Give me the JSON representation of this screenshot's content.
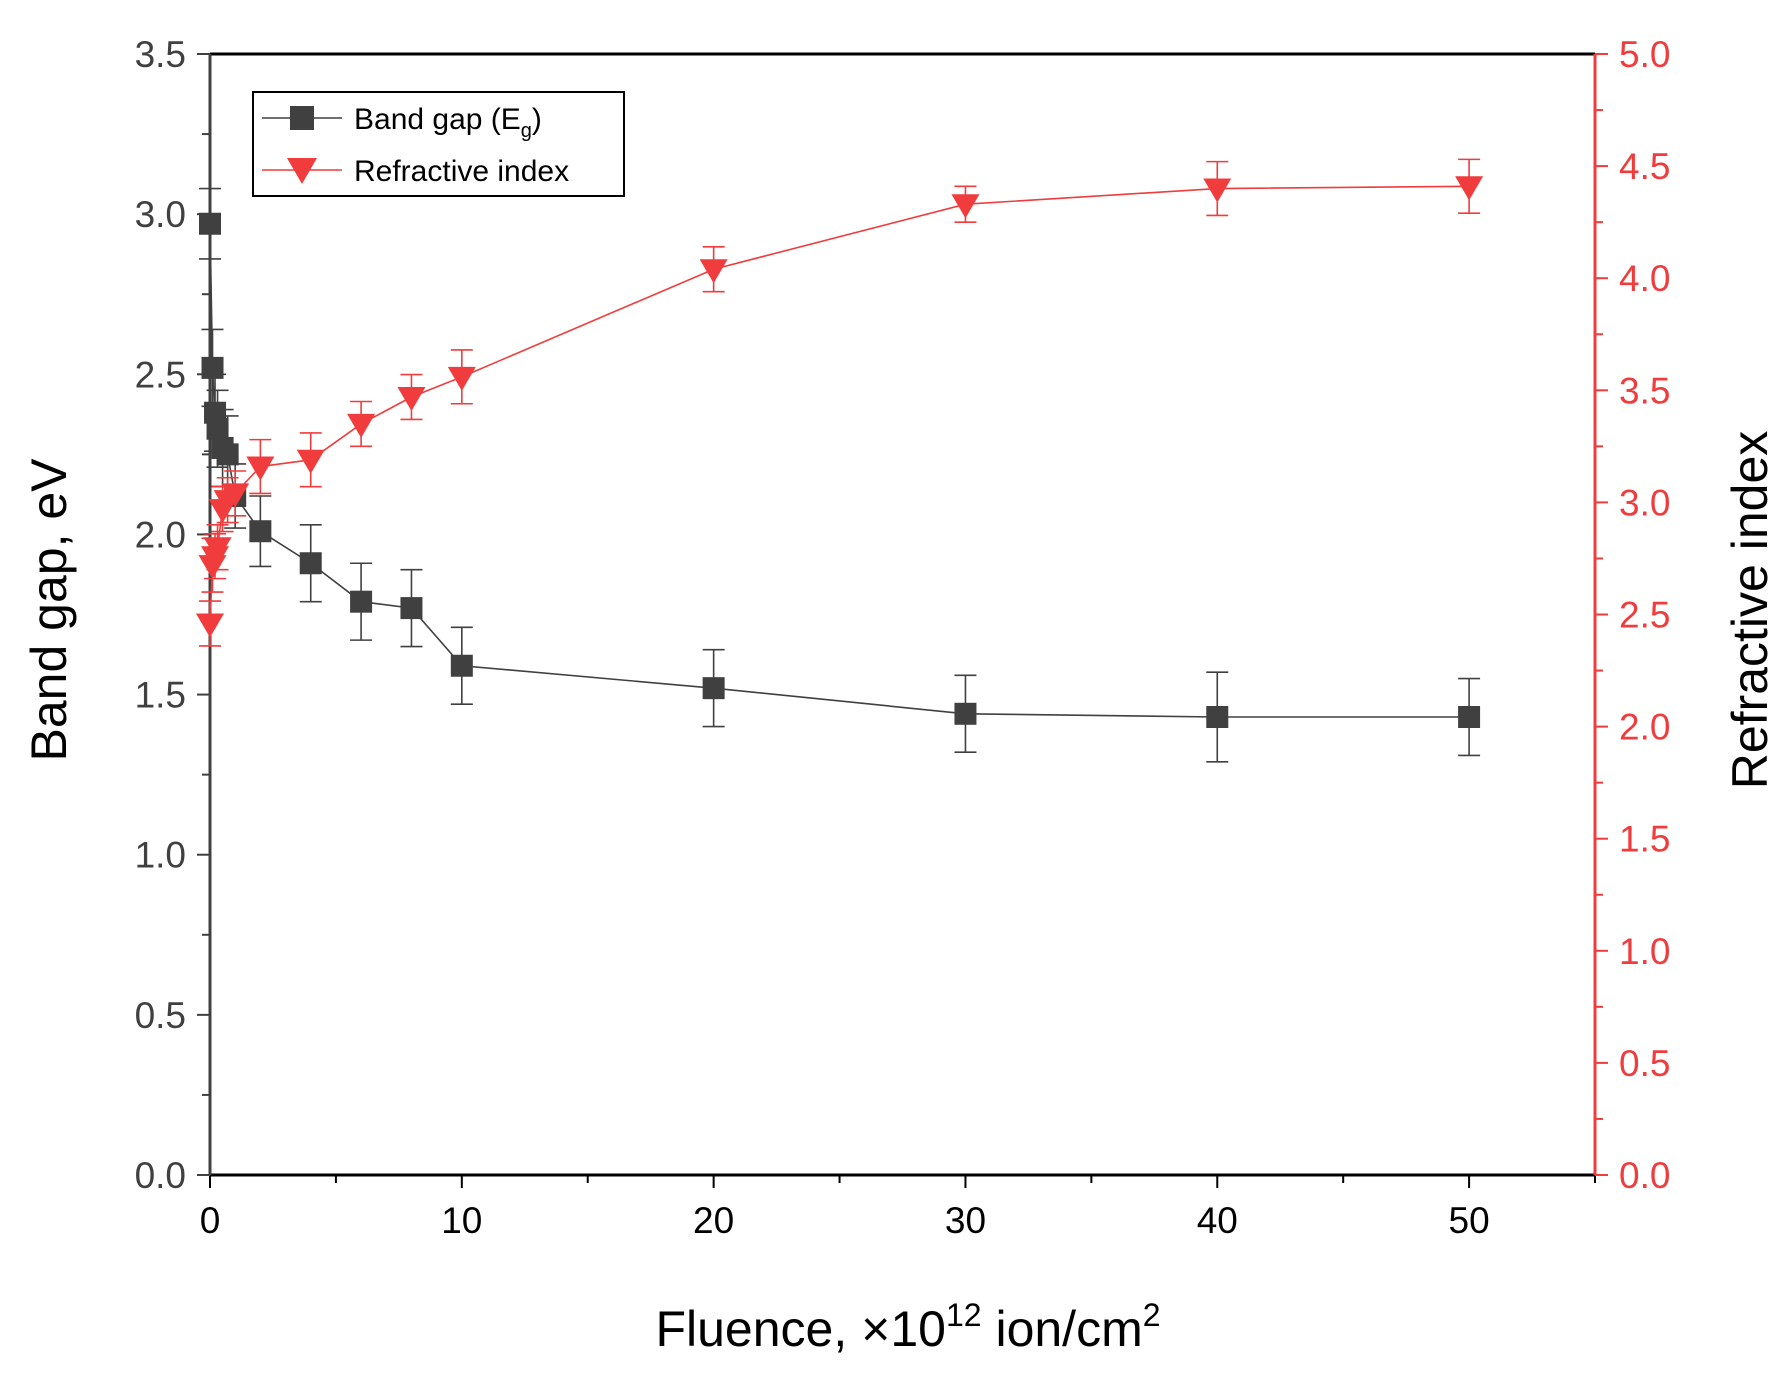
{
  "chart_data": {
    "type": "scatter",
    "title": "",
    "xlabel": {
      "main": "Fluence, ",
      "times_symbol": "×",
      "base": "10",
      "exponent": "12",
      "unit": " ion/cm",
      "unit_exponent": "2"
    },
    "ylabel_left": "Band gap, eV",
    "ylabel_right": "Refractive index",
    "xlim": [
      0,
      55
    ],
    "ylim_left": [
      0,
      3.5
    ],
    "ylim_right": [
      0,
      5.0
    ],
    "x_ticks": [
      0,
      10,
      20,
      30,
      40,
      50
    ],
    "x_tick_labels": [
      "0",
      "10",
      "20",
      "30",
      "40",
      "50"
    ],
    "x_minor_ticks": [
      5,
      15,
      25,
      35,
      45,
      55
    ],
    "y_left_ticks": [
      0,
      0.5,
      1.0,
      1.5,
      2.0,
      2.5,
      3.0,
      3.5
    ],
    "y_left_tick_labels": [
      "0.0",
      "0.5",
      "1.0",
      "1.5",
      "2.0",
      "2.5",
      "3.0",
      "3.5"
    ],
    "y_left_minor_ticks": [
      0.25,
      0.75,
      1.25,
      1.75,
      2.25,
      2.75,
      3.25
    ],
    "y_right_ticks": [
      0,
      0.5,
      1.0,
      1.5,
      2.0,
      2.5,
      3.0,
      3.5,
      4.0,
      4.5,
      5.0
    ],
    "y_right_tick_labels": [
      "0.0",
      "0.5",
      "1.0",
      "1.5",
      "2.0",
      "2.5",
      "3.0",
      "3.5",
      "4.0",
      "4.5",
      "5.0"
    ],
    "y_right_minor_ticks": [
      0.25,
      0.75,
      1.25,
      1.75,
      2.25,
      2.75,
      3.25,
      3.75,
      4.25,
      4.75
    ],
    "legend_position": "top-left",
    "series": [
      {
        "name": "Band gap (E",
        "name_subscript": "g",
        "name_suffix": ")",
        "axis": "left",
        "marker": "square",
        "color": "#404040",
        "x": [
          0,
          0.1,
          0.2,
          0.3,
          0.5,
          0.7,
          1,
          2,
          4,
          6,
          8,
          10,
          20,
          30,
          40,
          50
        ],
        "y": [
          2.97,
          2.52,
          2.38,
          2.33,
          2.27,
          2.25,
          2.12,
          2.01,
          1.91,
          1.79,
          1.77,
          1.59,
          1.52,
          1.44,
          1.43,
          1.43
        ],
        "err": [
          0.11,
          0.12,
          0.12,
          0.12,
          0.12,
          0.12,
          0.1,
          0.11,
          0.12,
          0.12,
          0.12,
          0.12,
          0.12,
          0.12,
          0.14,
          0.12
        ]
      },
      {
        "name": "Refractive index",
        "axis": "right",
        "marker": "triangle-down",
        "color": "#f03c3c",
        "x": [
          0,
          0.1,
          0.2,
          0.3,
          0.5,
          0.7,
          1,
          2,
          4,
          6,
          8,
          10,
          20,
          30,
          40,
          50
        ],
        "y": [
          2.46,
          2.72,
          2.76,
          2.8,
          2.97,
          3.01,
          3.04,
          3.16,
          3.19,
          3.35,
          3.47,
          3.56,
          4.04,
          4.33,
          4.4,
          4.41
        ],
        "err": [
          0.1,
          0.12,
          0.1,
          0.1,
          0.1,
          0.1,
          0.1,
          0.12,
          0.12,
          0.1,
          0.1,
          0.12,
          0.1,
          0.08,
          0.12,
          0.12
        ]
      }
    ]
  }
}
